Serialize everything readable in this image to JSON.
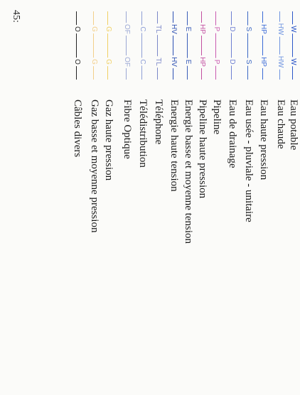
{
  "page_number": "45:",
  "legend": [
    {
      "code": "W",
      "label": "Eau potable",
      "color": "#2a55c8"
    },
    {
      "code": "HW",
      "label": "Eau chaude",
      "color": "#6f94e0"
    },
    {
      "code": "HP",
      "label": "Eau haute pression",
      "color": "#3a6ad6"
    },
    {
      "code": "S",
      "label": "Eau usée - pluviale - unitaire",
      "color": "#3c68c4"
    },
    {
      "code": "D",
      "label": "Eau de drainage",
      "color": "#6e7fd2"
    },
    {
      "code": "P",
      "label": "Pipeline",
      "color": "#c95bb0"
    },
    {
      "code": "HP",
      "label": "Pipeline haute pression",
      "color": "#c24ea0"
    },
    {
      "code": "E",
      "label": "Energie basse et moyenne tension",
      "color": "#3a5cb8"
    },
    {
      "code": "HV",
      "label": "Energie haute tension",
      "color": "#2b4fb2"
    },
    {
      "code": "TL",
      "label": "Téléphone",
      "color": "#7b87c8"
    },
    {
      "code": "C",
      "label": "Télédistribution",
      "color": "#8f9fd6"
    },
    {
      "code": "OF",
      "label": "Fibre Optique",
      "color": "#9aa7d4"
    },
    {
      "code": "G",
      "label": "Gaz haute pression",
      "color": "#f0d064"
    },
    {
      "code": "G",
      "label": "Gaz basse et moyenne pression",
      "color": "#f3cf8a"
    },
    {
      "code": "O",
      "label": "Câbles divers",
      "color": "#222222"
    }
  ]
}
